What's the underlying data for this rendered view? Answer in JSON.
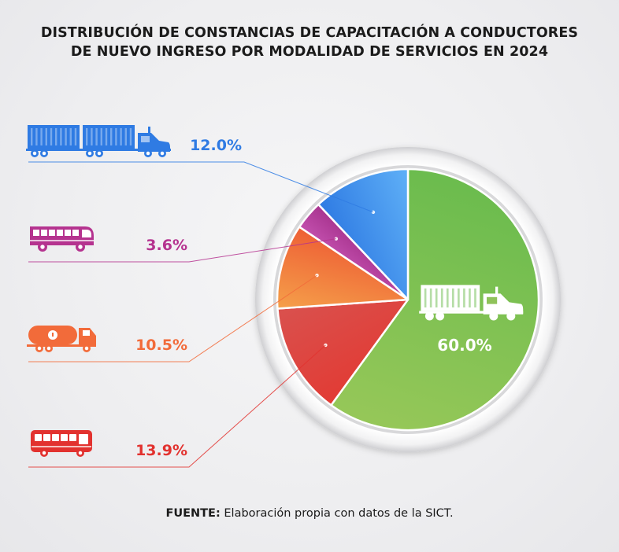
{
  "title": {
    "line1": "DISTRIBUCIÓN DE CONSTANCIAS DE CAPACITACIÓN A CONDUCTORES",
    "line2": "DE NUEVO INGRESO POR MODALIDAD DE SERVICIOS EN 2024"
  },
  "source": {
    "label": "FUENTE:",
    "text": "Elaboración propia con datos de la SICT."
  },
  "chart_data": {
    "type": "pie",
    "title": "DISTRIBUCIÓN DE CONSTANCIAS DE CAPACITACIÓN A CONDUCTORES DE NUEVO INGRESO POR MODALIDAD DE SERVICIOS EN 2024",
    "slices": [
      {
        "label": "60.0%",
        "value": 60.0,
        "icon": "semi-truck-icon",
        "color": "#6cbc4e",
        "color2": "#95c758"
      },
      {
        "label": "13.9%",
        "value": 13.9,
        "icon": "bus-icon",
        "color": "#e23b34",
        "color2": "#d9514e"
      },
      {
        "label": "10.5%",
        "value": 10.5,
        "icon": "tanker-truck-icon",
        "color": "#f5a04a",
        "color2": "#ee5f35"
      },
      {
        "label": "3.6%",
        "value": 3.6,
        "icon": "coach-bus-icon",
        "color": "#c24fad",
        "color2": "#a8348f"
      },
      {
        "label": "12.0%",
        "value": 12.0,
        "icon": "double-trailer-truck-icon",
        "color": "#2f7be3",
        "color2": "#5fb0f7"
      }
    ],
    "label_colors": {
      "60.0%": "#ffffff",
      "13.9%": "#e2322f",
      "10.5%": "#f26b3a",
      "3.6%": "#b5338f",
      "12.0%": "#2f7be3"
    }
  }
}
